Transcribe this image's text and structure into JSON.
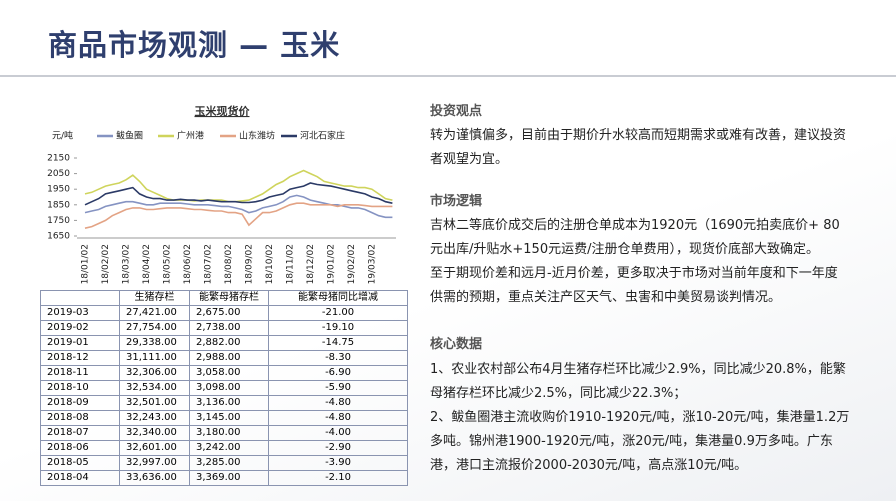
{
  "title": "商品市场观测 — 玉米",
  "chart_data": {
    "type": "line",
    "title": "玉米现货价",
    "y_label": "元/吨",
    "categories": [
      "18/01/02",
      null,
      null,
      "18/02/02",
      null,
      null,
      "18/03/02",
      null,
      null,
      "18/04/02",
      null,
      null,
      "18/05/02",
      null,
      null,
      "18/06/02",
      null,
      null,
      "18/07/02",
      null,
      null,
      "18/08/02",
      null,
      null,
      "18/09/02",
      null,
      null,
      "18/10/02",
      null,
      null,
      "18/11/02",
      null,
      null,
      "18/12/02",
      null,
      null,
      "19/01/02",
      null,
      null,
      "19/02/02",
      null,
      null,
      "19/03/02",
      null,
      null,
      null
    ],
    "ylim": [
      1650,
      2150
    ],
    "yticks": [
      1650,
      1750,
      1850,
      1950,
      2050,
      2150
    ],
    "series": [
      {
        "name": "鲅鱼圈",
        "color": "#8593c2",
        "values": [
          1800,
          1810,
          1820,
          1840,
          1850,
          1860,
          1870,
          1870,
          1860,
          1850,
          1850,
          1860,
          1860,
          1860,
          1860,
          1855,
          1850,
          1850,
          1850,
          1845,
          1840,
          1840,
          1830,
          1820,
          1800,
          1810,
          1830,
          1840,
          1850,
          1870,
          1900,
          1910,
          1900,
          1880,
          1870,
          1860,
          1850,
          1850,
          1840,
          1830,
          1830,
          1820,
          1800,
          1780,
          1770,
          1770
        ]
      },
      {
        "name": "广州港",
        "color": "#cfd45c",
        "values": [
          1920,
          1930,
          1950,
          1970,
          1980,
          1990,
          2010,
          2040,
          2000,
          1950,
          1930,
          1910,
          1890,
          1880,
          1880,
          1880,
          1875,
          1880,
          1880,
          1880,
          1880,
          1870,
          1870,
          1875,
          1880,
          1900,
          1920,
          1950,
          1980,
          2000,
          2030,
          2050,
          2070,
          2050,
          2030,
          2000,
          1990,
          1980,
          1970,
          1970,
          1960,
          1960,
          1950,
          1920,
          1890,
          1880
        ]
      },
      {
        "name": "山东潍坊",
        "color": "#e3a385",
        "values": [
          1700,
          1710,
          1730,
          1750,
          1780,
          1800,
          1820,
          1830,
          1830,
          1820,
          1820,
          1825,
          1830,
          1830,
          1830,
          1825,
          1820,
          1820,
          1815,
          1810,
          1810,
          1800,
          1800,
          1790,
          1720,
          1760,
          1800,
          1800,
          1810,
          1830,
          1850,
          1860,
          1860,
          1850,
          1850,
          1850,
          1850,
          1840,
          1850,
          1850,
          1850,
          1845,
          1840,
          1840,
          1840,
          1840
        ]
      },
      {
        "name": "河北石家庄",
        "color": "#2b3a66",
        "values": [
          1850,
          1870,
          1890,
          1920,
          1930,
          1940,
          1950,
          1960,
          1920,
          1900,
          1890,
          1890,
          1880,
          1880,
          1885,
          1880,
          1880,
          1875,
          1880,
          1875,
          1870,
          1870,
          1870,
          1865,
          1865,
          1870,
          1880,
          1900,
          1910,
          1920,
          1950,
          1960,
          1970,
          1990,
          1980,
          1975,
          1970,
          1960,
          1950,
          1940,
          1930,
          1920,
          1900,
          1890,
          1870,
          1860
        ]
      }
    ]
  },
  "table": {
    "header": [
      "生猪存栏",
      "能繁母猪存栏",
      "能繁母猪同比增减"
    ],
    "rows": [
      [
        "2019-03",
        "27,421.00",
        "2,675.00",
        "-21.00"
      ],
      [
        "2019-02",
        "27,754.00",
        "2,738.00",
        "-19.10"
      ],
      [
        "2019-01",
        "29,338.00",
        "2,882.00",
        "-14.75"
      ],
      [
        "2018-12",
        "31,111.00",
        "2,988.00",
        "-8.30"
      ],
      [
        "2018-11",
        "32,306.00",
        "3,058.00",
        "-6.90"
      ],
      [
        "2018-10",
        "32,534.00",
        "3,098.00",
        "-5.90"
      ],
      [
        "2018-09",
        "32,501.00",
        "3,136.00",
        "-4.80"
      ],
      [
        "2018-08",
        "32,243.00",
        "3,145.00",
        "-4.80"
      ],
      [
        "2018-07",
        "32,340.00",
        "3,180.00",
        "-4.00"
      ],
      [
        "2018-06",
        "32,601.00",
        "3,242.00",
        "-2.90"
      ],
      [
        "2018-05",
        "32,997.00",
        "3,285.00",
        "-3.90"
      ],
      [
        "2018-04",
        "33,636.00",
        "3,369.00",
        "-2.10"
      ]
    ]
  },
  "sections": [
    {
      "heading": "投资观点",
      "paragraphs": [
        "转为谨慎偏多，目前由于期价升水较高而短期需求或难有改善，建议投资者观望为宜。"
      ]
    },
    {
      "heading": "市场逻辑",
      "paragraphs": [
        "吉林二等底价成交后的注册仓单成本为1920元（1690元拍卖底价+ 80元出库/升贴水+150元运费/注册仓单费用），现货价底部大致确定。",
        "至于期现价差和远月-近月价差，更多取决于市场对当前年度和下一年度供需的预期，重点关注产区天气、虫害和中美贸易谈判情况。"
      ]
    },
    {
      "heading": "核心数据",
      "paragraphs": [
        "1、农业农村部公布4月生猪存栏环比减少2.9%，同比减少20.8%，能繁母猪存栏环比减少2.5%，同比减少22.3%；",
        "2、鲅鱼圈港主流收购价1910-1920元/吨，涨10-20元/吨，集港量1.2万多吨。锦州港1900-1920元/吨，涨20元/吨，集港量0.9万多吨。广东港，港口主流报价2000-2030元/吨，高点涨10元/吨。"
      ]
    }
  ]
}
